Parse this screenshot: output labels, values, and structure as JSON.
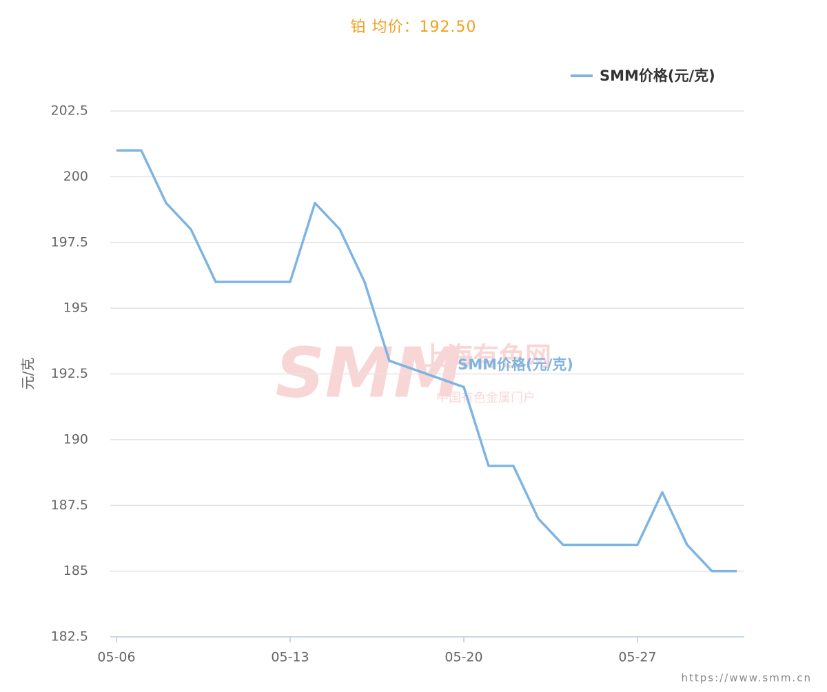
{
  "chart_data": {
    "type": "line",
    "title": "铂 均价：192.50",
    "y_axis_label": "元/克",
    "x": [
      "05-06",
      "05-07",
      "05-08",
      "05-09",
      "05-10",
      "05-13",
      "05-14",
      "05-15",
      "05-16",
      "05-17",
      "05-20",
      "05-21",
      "05-22",
      "05-23",
      "05-24",
      "05-27",
      "05-28",
      "05-29",
      "05-30",
      "05-31"
    ],
    "series": [
      {
        "name": "SMM价格(元/克)",
        "color": "#7eb4e2",
        "values": [
          201,
          201,
          199,
          198,
          196,
          196,
          199,
          198,
          196,
          193,
          192,
          189,
          189,
          187,
          186,
          186,
          188,
          186,
          185,
          185
        ]
      }
    ],
    "xticks": [
      "05-06",
      "05-13",
      "05-20",
      "05-27"
    ],
    "ylim": [
      182.5,
      202.5
    ],
    "yticks": [
      182.5,
      185,
      187.5,
      190,
      192.5,
      195,
      197.5,
      200,
      202.5
    ],
    "grid": true,
    "legend": "top-right",
    "watermark": {
      "logo": "SMM",
      "name": "上海有色网",
      "slogan": "中国有色金属门户"
    },
    "footer": "https://www.smm.cn"
  }
}
